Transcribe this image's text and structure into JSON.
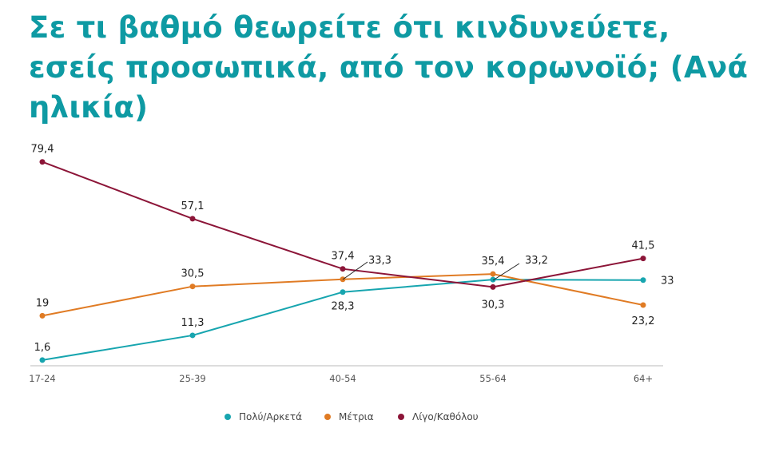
{
  "chart_data": {
    "type": "line",
    "title": "Σε τι βαθμό θεωρείτε ότι κινδυνεύετε, εσείς προσωπικά, από τον κορωνοϊό; (Ανά ηλικία)",
    "categories": [
      "17-24",
      "25-39",
      "40-54",
      "55-64",
      "64+"
    ],
    "series": [
      {
        "name": "Πολύ/Αρκετά",
        "color": "#17A5AF",
        "values": [
          1.6,
          11.3,
          28.3,
          33.2,
          33
        ],
        "labels": [
          "1,6",
          "11,3",
          "28,3",
          "33,2",
          "33"
        ]
      },
      {
        "name": "Μέτρια",
        "color": "#E07B24",
        "values": [
          19,
          30.5,
          33.3,
          35.4,
          23.2
        ],
        "labels": [
          "19",
          "30,5",
          "33,3",
          "35,4",
          "23,2"
        ]
      },
      {
        "name": "Λίγο/Καθόλου",
        "color": "#8C1538",
        "values": [
          79.4,
          57.1,
          37.4,
          30.3,
          41.5
        ],
        "labels": [
          "79,4",
          "57,1",
          "37,4",
          "30,3",
          "41,5"
        ]
      }
    ],
    "ylim": [
      0,
      80
    ],
    "grid": false,
    "legend": "bottom"
  }
}
